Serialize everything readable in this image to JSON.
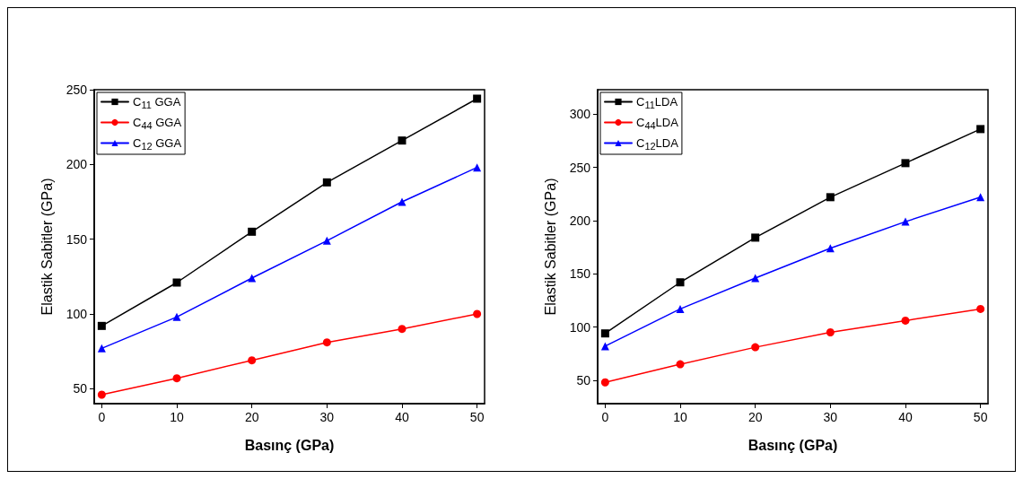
{
  "chart_data": [
    {
      "type": "line",
      "xlabel": "Basınç (GPa)",
      "ylabel": "Elastik Sabitler (GPa)",
      "x": [
        0,
        10,
        20,
        30,
        40,
        50
      ],
      "xlim": [
        -1,
        51
      ],
      "xticks": [
        0,
        10,
        20,
        30,
        40,
        50
      ],
      "ylim": [
        40,
        250
      ],
      "yticks": [
        50,
        100,
        150,
        200,
        250
      ],
      "legend": "top left",
      "grid": false,
      "line_style": "solid",
      "series": [
        {
          "name": "C$_{11}$ GGA",
          "color": "#000000",
          "marker": "square",
          "values": [
            92,
            121,
            155,
            188,
            216,
            244
          ]
        },
        {
          "name": "C$_{44}$ GGA",
          "color": "#ff0000",
          "marker": "circle",
          "values": [
            46,
            57,
            69,
            81,
            90,
            100
          ]
        },
        {
          "name": "C$_{12}$ GGA",
          "color": "#0000ff",
          "marker": "triangle",
          "values": [
            77,
            98,
            124,
            149,
            175,
            198
          ]
        }
      ]
    },
    {
      "type": "line",
      "xlabel": "Basınç (GPa)",
      "ylabel": "Elastik Sabitler (GPa)",
      "x": [
        0,
        10,
        20,
        30,
        40,
        50
      ],
      "xlim": [
        -1,
        51
      ],
      "xticks": [
        0,
        10,
        20,
        30,
        40,
        50
      ],
      "ylim": [
        28,
        323
      ],
      "yticks": [
        50,
        100,
        150,
        200,
        250,
        300
      ],
      "legend": "top left",
      "grid": false,
      "line_style": "solid",
      "series": [
        {
          "name": "C$_{11}$LDA",
          "color": "#000000",
          "marker": "square",
          "values": [
            94,
            142,
            184,
            222,
            254,
            286
          ]
        },
        {
          "name": "C$_{44}$LDA",
          "color": "#ff0000",
          "marker": "circle",
          "values": [
            48,
            65,
            81,
            95,
            106,
            117
          ]
        },
        {
          "name": "C$_{12}$LDA",
          "color": "#0000ff",
          "marker": "triangle",
          "values": [
            82,
            117,
            146,
            174,
            199,
            222
          ]
        }
      ]
    }
  ]
}
